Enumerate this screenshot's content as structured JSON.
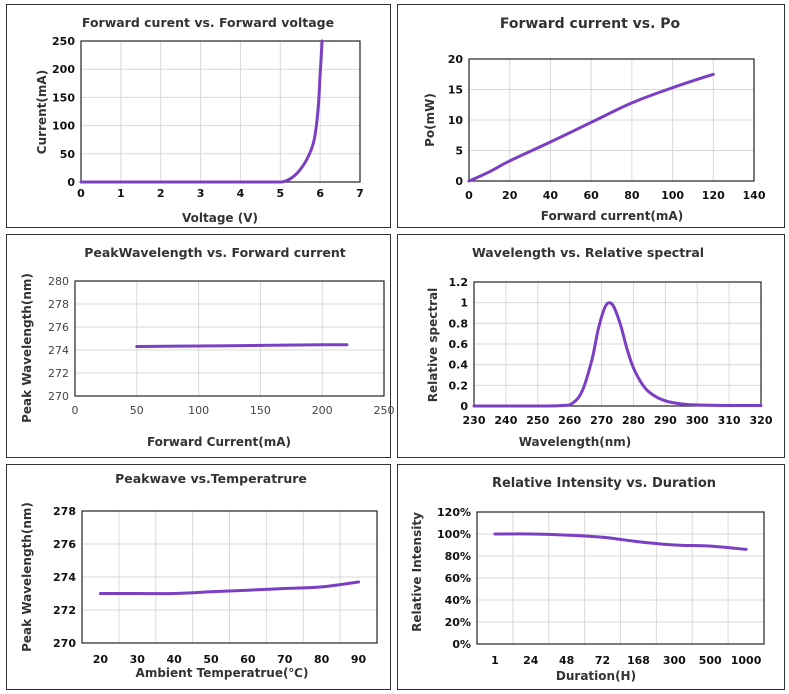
{
  "series_color": "#7b3fc4",
  "chart_data": [
    {
      "id": "iv",
      "type": "line",
      "title": "Forward curent vs. Forward voltage",
      "xlabel": "Voltage  (V)",
      "ylabel": "Current(mA)",
      "xlim": [
        0,
        7
      ],
      "ylim": [
        0,
        250
      ],
      "xticks": [
        "0",
        "1",
        "2",
        "3",
        "4",
        "5",
        "6",
        "7"
      ],
      "yticks": [
        "0",
        "50",
        "100",
        "150",
        "200",
        "250"
      ],
      "grid": true,
      "x": [
        0,
        1,
        2,
        3,
        4,
        4.9,
        5.1,
        5.3,
        5.5,
        5.7,
        5.85,
        5.95,
        6.0,
        6.05
      ],
      "y": [
        0,
        0,
        0,
        0,
        0,
        0,
        1,
        8,
        22,
        45,
        75,
        130,
        190,
        250
      ]
    },
    {
      "id": "po",
      "type": "line",
      "title": "Forward current vs. Po",
      "xlabel": "Forward current(mA)",
      "ylabel": "Po(mW)",
      "xlim": [
        0,
        140
      ],
      "ylim": [
        0,
        20
      ],
      "xticks": [
        "0",
        "20",
        "40",
        "60",
        "80",
        "100",
        "120",
        "140"
      ],
      "yticks": [
        "0",
        "5",
        "10",
        "15",
        "20"
      ],
      "grid": true,
      "x": [
        0,
        10,
        20,
        40,
        60,
        80,
        100,
        120
      ],
      "y": [
        0,
        1.5,
        3.3,
        6.4,
        9.6,
        12.8,
        15.3,
        17.5
      ]
    },
    {
      "id": "wl-current",
      "type": "line",
      "title": "PeakWavelength vs. Forward current",
      "xlabel": "Forward Current(mA)",
      "ylabel": "Peak Wavelength(nm)",
      "xlim": [
        0,
        250
      ],
      "ylim": [
        270,
        280
      ],
      "xticks": [
        "0",
        "50",
        "100",
        "150",
        "200",
        "250"
      ],
      "yticks": [
        "270",
        "272",
        "274",
        "276",
        "278",
        "280"
      ],
      "grid": true,
      "x": [
        50,
        100,
        150,
        200,
        220
      ],
      "y": [
        274.3,
        274.35,
        274.4,
        274.45,
        274.45
      ]
    },
    {
      "id": "spectrum",
      "type": "line",
      "title": "Wavelength vs. Relative spectral",
      "xlabel": "Wavelength(nm)",
      "ylabel": "Relative spectral",
      "xlim": [
        230,
        320
      ],
      "ylim": [
        0,
        1.2
      ],
      "xticks": [
        "230",
        "240",
        "250",
        "260",
        "270",
        "280",
        "290",
        "300",
        "310",
        "320"
      ],
      "yticks": [
        "0",
        "0.2",
        "0.4",
        "0.6",
        "0.8",
        "1",
        "1.2"
      ],
      "grid": true,
      "x": [
        230,
        250,
        258,
        261,
        264,
        267,
        269,
        271,
        272.5,
        274,
        276,
        278,
        280,
        283,
        286,
        290,
        295,
        300,
        310,
        320
      ],
      "y": [
        0,
        0,
        0.005,
        0.03,
        0.15,
        0.45,
        0.75,
        0.95,
        1.0,
        0.95,
        0.78,
        0.55,
        0.37,
        0.2,
        0.11,
        0.05,
        0.02,
        0.01,
        0.005,
        0.005
      ]
    },
    {
      "id": "wl-temp",
      "type": "line",
      "title": "Peakwave vs.Temperatrure",
      "xlabel": "Ambient Temperatrue(℃)",
      "ylabel": "Peak Wavelength(nm)",
      "categories": [
        "20",
        "30",
        "40",
        "50",
        "60",
        "70",
        "80",
        "90"
      ],
      "ylim": [
        270,
        278
      ],
      "yticks": [
        "270",
        "272",
        "274",
        "276",
        "278"
      ],
      "grid": true,
      "values": [
        273.0,
        273.0,
        273.0,
        273.1,
        273.2,
        273.3,
        273.4,
        273.7
      ]
    },
    {
      "id": "lifetime",
      "type": "line",
      "title": "Relative Intensity vs. Duration",
      "xlabel": "Duration(H)",
      "ylabel": "Relative Intensity",
      "categories": [
        "1",
        "24",
        "48",
        "72",
        "168",
        "300",
        "500",
        "1000"
      ],
      "ylim": [
        0,
        120
      ],
      "yticks": [
        "0%",
        "20%",
        "40%",
        "60%",
        "80%",
        "100%",
        "120%"
      ],
      "grid": true,
      "values": [
        100,
        100,
        99,
        97,
        93,
        90,
        89,
        86
      ]
    }
  ]
}
